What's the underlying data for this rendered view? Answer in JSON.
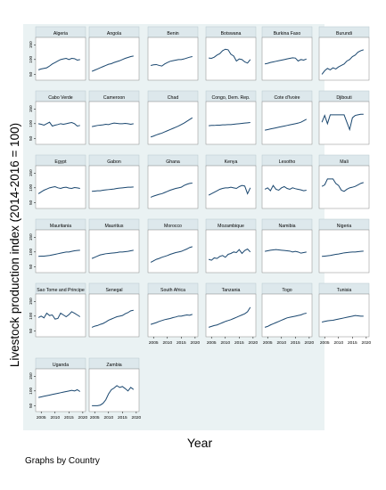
{
  "figure": {
    "ylabel": "Livestock production index (2014-2016 = 100)",
    "xlabel": "Year",
    "note": "Graphs by Country",
    "line_color": "#1a476f",
    "panel_bg": "#ffffff",
    "outer_bg": "#eaf2f3",
    "strip_bg": "#dde8ec"
  },
  "chart_data": {
    "type": "line",
    "x": [
      2004,
      2005,
      2006,
      2007,
      2008,
      2009,
      2010,
      2011,
      2012,
      2013,
      2014,
      2015,
      2016,
      2017,
      2018,
      2019
    ],
    "xlim": [
      2003,
      2021
    ],
    "ylim": [
      30,
      175
    ],
    "x_ticks": [
      "2005",
      "2010",
      "2015",
      "2020"
    ],
    "y_ticks": [
      "50",
      "100",
      "150"
    ],
    "panels": [
      {
        "title": "Algeria",
        "values": [
          65,
          68,
          70,
          72,
          78,
          85,
          90,
          95,
          100,
          102,
          104,
          100,
          104,
          103,
          98,
          100
        ]
      },
      {
        "title": "Angola",
        "values": [
          60,
          64,
          68,
          72,
          76,
          80,
          84,
          86,
          90,
          93,
          96,
          100,
          104,
          107,
          110,
          112
        ]
      },
      {
        "title": "Benin",
        "values": [
          80,
          82,
          83,
          80,
          78,
          85,
          90,
          94,
          96,
          98,
          100,
          100,
          102,
          105,
          108,
          110
        ]
      },
      {
        "title": "Botswana",
        "values": [
          105,
          104,
          108,
          115,
          120,
          130,
          135,
          133,
          118,
          112,
          95,
          102,
          100,
          92,
          88,
          100
        ]
      },
      {
        "title": "Burkina Faso",
        "values": [
          85,
          87,
          90,
          92,
          94,
          96,
          98,
          100,
          102,
          104,
          106,
          105,
          95,
          100,
          98,
          102
        ]
      },
      {
        "title": "Burundi",
        "values": [
          50,
          62,
          70,
          65,
          72,
          68,
          75,
          80,
          85,
          95,
          100,
          110,
          115,
          125,
          130,
          133
        ]
      },
      {
        "title": "Cabo Verde",
        "values": [
          100,
          98,
          95,
          100,
          105,
          92,
          95,
          97,
          100,
          98,
          100,
          102,
          104,
          100,
          92,
          94
        ]
      },
      {
        "title": "Cameroon",
        "values": [
          90,
          92,
          94,
          95,
          96,
          98,
          97,
          100,
          102,
          101,
          100,
          100,
          101,
          100,
          98,
          100
        ]
      },
      {
        "title": "Chad",
        "values": [
          55,
          58,
          62,
          65,
          68,
          72,
          76,
          80,
          84,
          88,
          92,
          97,
          102,
          108,
          114,
          120
        ]
      },
      {
        "title": "Congo, Dem. Rep.",
        "values": [
          93,
          94,
          94,
          95,
          95,
          96,
          96,
          97,
          97,
          98,
          99,
          100,
          101,
          102,
          103,
          104
        ]
      },
      {
        "title": "Cote d'Ivoire",
        "values": [
          78,
          80,
          82,
          84,
          86,
          88,
          90,
          92,
          94,
          96,
          98,
          100,
          102,
          105,
          110,
          115
        ]
      },
      {
        "title": "Djibouti",
        "values": [
          105,
          128,
          100,
          130,
          130,
          130,
          130,
          130,
          130,
          105,
          80,
          120,
          128,
          130,
          132,
          132
        ]
      },
      {
        "title": "Egypt",
        "values": [
          80,
          86,
          92,
          96,
          100,
          102,
          104,
          100,
          98,
          101,
          102,
          99,
          98,
          101,
          100,
          98
        ]
      },
      {
        "title": "Gabon",
        "values": [
          88,
          89,
          90,
          90,
          92,
          93,
          94,
          95,
          96,
          98,
          99,
          100,
          101,
          102,
          102,
          103
        ]
      },
      {
        "title": "Ghana",
        "values": [
          68,
          72,
          75,
          78,
          80,
          84,
          88,
          92,
          95,
          98,
          100,
          102,
          108,
          112,
          115,
          116
        ]
      },
      {
        "title": "Kenya",
        "values": [
          75,
          80,
          85,
          90,
          95,
          98,
          100,
          100,
          102,
          100,
          98,
          104,
          108,
          106,
          80,
          100
        ]
      },
      {
        "title": "Lesotho",
        "values": [
          95,
          100,
          90,
          108,
          95,
          92,
          100,
          104,
          98,
          95,
          100,
          97,
          95,
          93,
          90,
          92
        ]
      },
      {
        "title": "Mali",
        "values": [
          105,
          110,
          130,
          130,
          130,
          115,
          108,
          92,
          88,
          95,
          100,
          102,
          105,
          110,
          115,
          118
        ]
      },
      {
        "title": "Mauritania",
        "values": [
          85,
          86,
          86,
          87,
          88,
          90,
          92,
          94,
          96,
          98,
          100,
          100,
          102,
          104,
          105,
          106
        ]
      },
      {
        "title": "Mauritius",
        "values": [
          78,
          82,
          86,
          90,
          92,
          94,
          95,
          96,
          97,
          98,
          100,
          100,
          101,
          102,
          104,
          106
        ]
      },
      {
        "title": "Morocco",
        "values": [
          65,
          70,
          75,
          78,
          82,
          85,
          88,
          92,
          95,
          98,
          100,
          102,
          106,
          110,
          115,
          118
        ]
      },
      {
        "title": "Mozambique",
        "values": [
          75,
          72,
          80,
          78,
          85,
          88,
          82,
          92,
          95,
          100,
          98,
          108,
          95,
          105,
          110,
          100
        ]
      },
      {
        "title": "Namibia",
        "values": [
          102,
          104,
          106,
          107,
          108,
          107,
          106,
          105,
          104,
          103,
          100,
          102,
          100,
          96,
          98,
          100
        ]
      },
      {
        "title": "Nigeria",
        "values": [
          85,
          86,
          87,
          88,
          90,
          92,
          93,
          95,
          97,
          98,
          99,
          100,
          100,
          101,
          102,
          103
        ]
      },
      {
        "title": "Sao Tome and Principe",
        "values": [
          95,
          100,
          94,
          110,
          102,
          104,
          90,
          92,
          110,
          104,
          98,
          105,
          115,
          110,
          104,
          98
        ]
      },
      {
        "title": "Senegal",
        "values": [
          62,
          66,
          68,
          72,
          75,
          80,
          86,
          90,
          94,
          98,
          100,
          102,
          108,
          112,
          118,
          120
        ]
      },
      {
        "title": "South Africa",
        "values": [
          72,
          75,
          78,
          82,
          85,
          88,
          90,
          92,
          95,
          97,
          100,
          100,
          102,
          104,
          103,
          106
        ]
      },
      {
        "title": "Tanzania",
        "values": [
          62,
          65,
          68,
          70,
          74,
          78,
          82,
          85,
          88,
          92,
          96,
          100,
          104,
          108,
          115,
          130
        ]
      },
      {
        "title": "Togo",
        "values": [
          62,
          65,
          70,
          74,
          78,
          82,
          86,
          90,
          94,
          96,
          98,
          100,
          102,
          104,
          108,
          110
        ]
      },
      {
        "title": "Tunisia",
        "values": [
          80,
          82,
          84,
          85,
          86,
          88,
          90,
          92,
          94,
          96,
          98,
          100,
          102,
          101,
          100,
          100
        ]
      },
      {
        "title": "Uganda",
        "values": [
          78,
          80,
          82,
          84,
          86,
          88,
          90,
          92,
          94,
          96,
          98,
          100,
          102,
          100,
          104,
          98
        ]
      },
      {
        "title": "Zambia",
        "values": [
          50,
          50,
          50,
          52,
          58,
          70,
          90,
          104,
          110,
          118,
          112,
          115,
          108,
          100,
          112,
          105
        ]
      }
    ]
  }
}
